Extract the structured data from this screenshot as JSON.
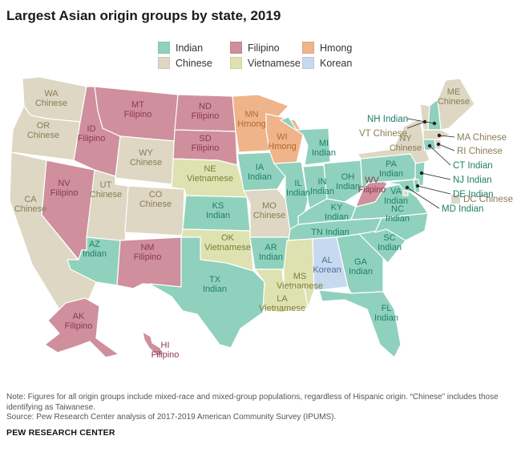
{
  "title": "Largest Asian origin groups by state, 2019",
  "colors": {
    "Indian": "#8fd1bd",
    "Filipino": "#cf8f9d",
    "Hmong": "#f0b48a",
    "Chinese": "#ddd7c3",
    "Vietnamese": "#dee2b0",
    "Korean": "#c7d9ef"
  },
  "text_colors": {
    "Indian": "#1e7f6a",
    "Filipino": "#8a3a4f",
    "Hmong": "#b06a2e",
    "Chinese": "#8a7d55",
    "Vietnamese": "#7c7d3a",
    "Korean": "#4e6f9a"
  },
  "legend": [
    {
      "group": "Indian",
      "label": "Indian"
    },
    {
      "group": "Filipino",
      "label": "Filipino"
    },
    {
      "group": "Hmong",
      "label": "Hmong"
    },
    {
      "group": "Chinese",
      "label": "Chinese"
    },
    {
      "group": "Vietnamese",
      "label": "Vietnamese"
    },
    {
      "group": "Korean",
      "label": "Korean"
    }
  ],
  "states": [
    {
      "abbr": "WA",
      "group": "Chinese"
    },
    {
      "abbr": "OR",
      "group": "Chinese"
    },
    {
      "abbr": "CA",
      "group": "Chinese"
    },
    {
      "abbr": "NV",
      "group": "Filipino"
    },
    {
      "abbr": "ID",
      "group": "Filipino"
    },
    {
      "abbr": "MT",
      "group": "Filipino"
    },
    {
      "abbr": "WY",
      "group": "Chinese"
    },
    {
      "abbr": "UT",
      "group": "Chinese"
    },
    {
      "abbr": "CO",
      "group": "Chinese"
    },
    {
      "abbr": "AZ",
      "group": "Indian"
    },
    {
      "abbr": "NM",
      "group": "Filipino"
    },
    {
      "abbr": "ND",
      "group": "Filipino"
    },
    {
      "abbr": "SD",
      "group": "Filipino"
    },
    {
      "abbr": "NE",
      "group": "Vietnamese"
    },
    {
      "abbr": "KS",
      "group": "Indian"
    },
    {
      "abbr": "OK",
      "group": "Vietnamese"
    },
    {
      "abbr": "TX",
      "group": "Indian"
    },
    {
      "abbr": "MN",
      "group": "Hmong"
    },
    {
      "abbr": "IA",
      "group": "Indian"
    },
    {
      "abbr": "MO",
      "group": "Chinese"
    },
    {
      "abbr": "AR",
      "group": "Indian"
    },
    {
      "abbr": "LA",
      "group": "Vietnamese"
    },
    {
      "abbr": "WI",
      "group": "Hmong"
    },
    {
      "abbr": "IL",
      "group": "Indian"
    },
    {
      "abbr": "MI",
      "group": "Indian"
    },
    {
      "abbr": "IN",
      "group": "Indian"
    },
    {
      "abbr": "OH",
      "group": "Indian"
    },
    {
      "abbr": "KY",
      "group": "Indian"
    },
    {
      "abbr": "TN",
      "group": "Indian"
    },
    {
      "abbr": "MS",
      "group": "Vietnamese"
    },
    {
      "abbr": "AL",
      "group": "Korean"
    },
    {
      "abbr": "GA",
      "group": "Indian"
    },
    {
      "abbr": "FL",
      "group": "Indian"
    },
    {
      "abbr": "SC",
      "group": "Indian"
    },
    {
      "abbr": "NC",
      "group": "Indian"
    },
    {
      "abbr": "VA",
      "group": "Indian"
    },
    {
      "abbr": "WV",
      "group": "Filipino"
    },
    {
      "abbr": "PA",
      "group": "Indian"
    },
    {
      "abbr": "NY",
      "group": "Chinese"
    },
    {
      "abbr": "VT",
      "group": "Chinese"
    },
    {
      "abbr": "NH",
      "group": "Indian"
    },
    {
      "abbr": "ME",
      "group": "Chinese"
    },
    {
      "abbr": "MA",
      "group": "Chinese"
    },
    {
      "abbr": "RI",
      "group": "Chinese"
    },
    {
      "abbr": "CT",
      "group": "Indian"
    },
    {
      "abbr": "NJ",
      "group": "Indian"
    },
    {
      "abbr": "DE",
      "group": "Indian"
    },
    {
      "abbr": "MD",
      "group": "Indian"
    },
    {
      "abbr": "DC",
      "group": "Chinese"
    },
    {
      "abbr": "AK",
      "group": "Filipino"
    },
    {
      "abbr": "HI",
      "group": "Filipino"
    }
  ],
  "callouts": {
    "NH": "NH Indian",
    "VT": "VT Chinese",
    "MA": "MA Chinese",
    "RI": "RI Chinese",
    "CT": "CT Indian",
    "NJ": "NJ Indian",
    "DE": "DE Indian",
    "MD": "MD Indian",
    "DC": "DC Chinese"
  },
  "note": "Note: Figures for all origin groups include mixed-race and mixed-group populations, regardless of Hispanic origin. “Chinese” includes those identifying as Taiwanese.",
  "source": "Source: Pew Research Center analysis of 2017-2019 American Community Survey (IPUMS).",
  "brand": "PEW RESEARCH CENTER"
}
